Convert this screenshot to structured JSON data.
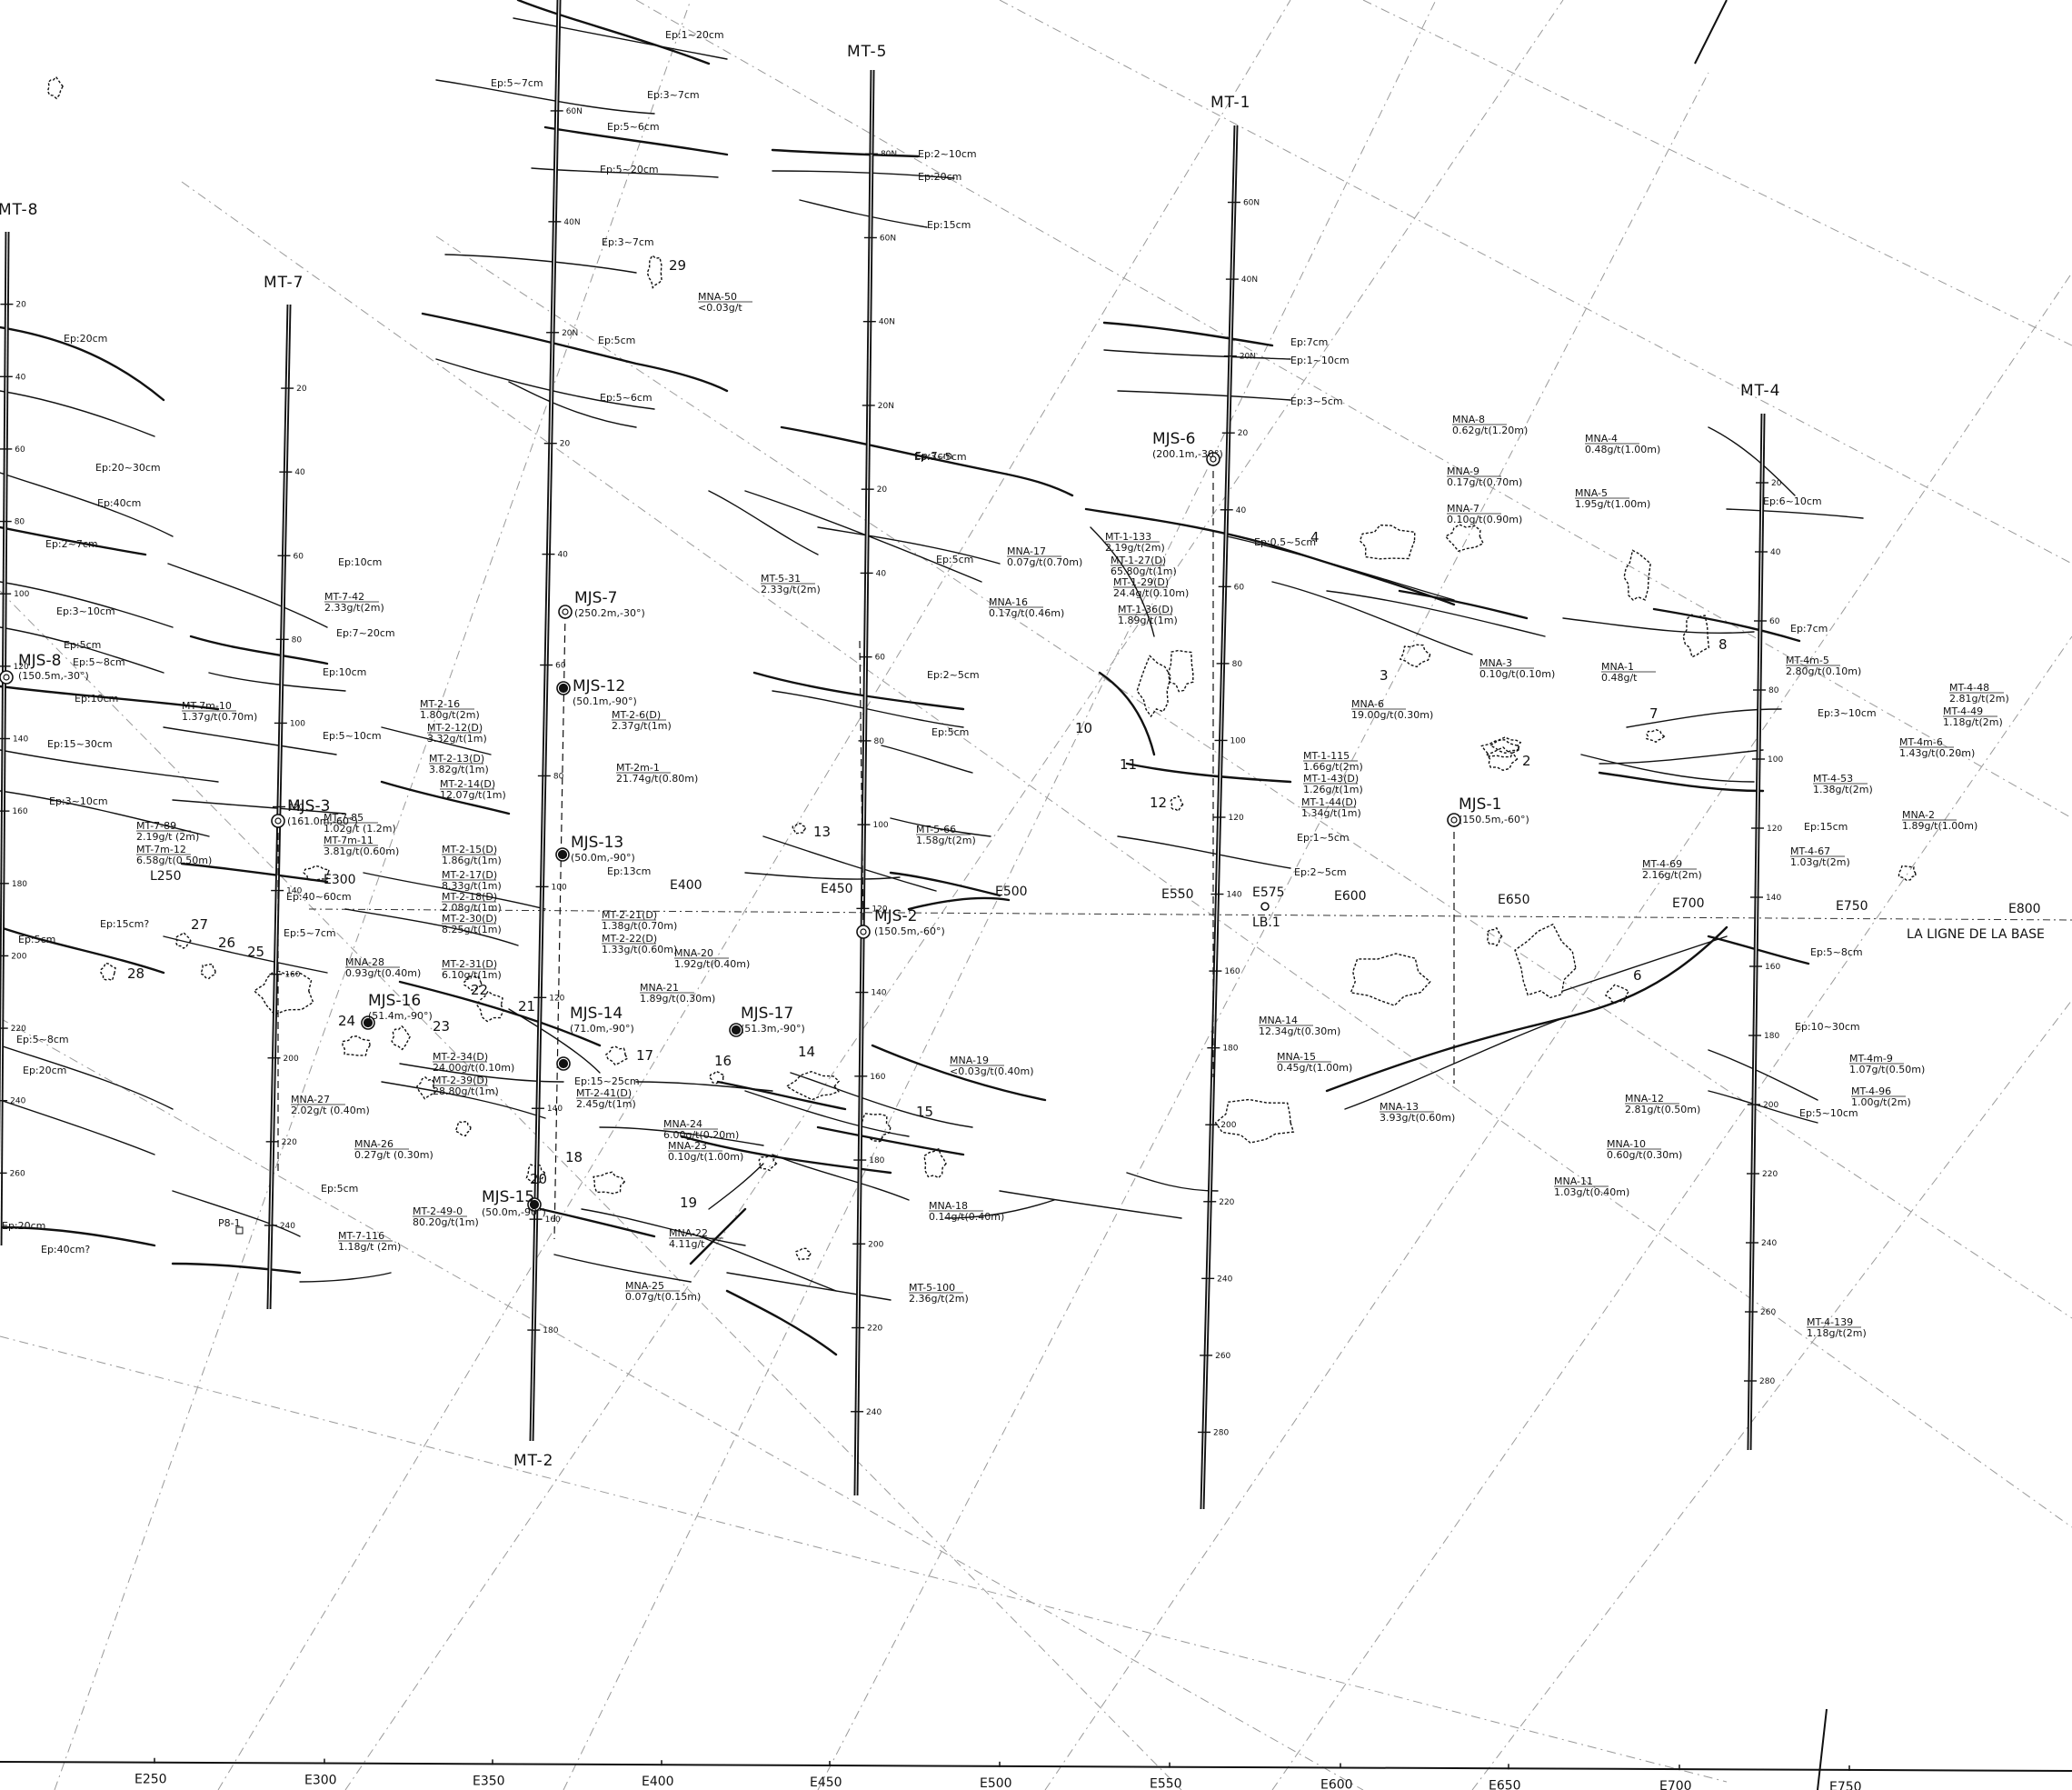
{
  "trenches": [
    {
      "id": "mt-8",
      "label": "MT-8",
      "ticks": [
        "20",
        "40",
        "60",
        "80",
        "100",
        "120",
        "140",
        "160",
        "180",
        "200",
        "220",
        "240",
        "260"
      ]
    },
    {
      "id": "mt-7",
      "label": "MT-7",
      "ticks": [
        "20",
        "40",
        "60",
        "80",
        "100",
        "120",
        "140",
        "160",
        "200",
        "220",
        "240"
      ]
    },
    {
      "id": "mt-2",
      "label": "MT-2",
      "ticks": [
        "60N",
        "40N",
        "20N",
        "20",
        "40",
        "60",
        "80",
        "100",
        "120",
        "140",
        "160",
        "180"
      ]
    },
    {
      "id": "mt-5",
      "label": "MT-5",
      "ticks": [
        "80N",
        "60N",
        "40N",
        "20N",
        "20",
        "40",
        "60",
        "80",
        "100",
        "120",
        "140",
        "160",
        "180",
        "200",
        "220",
        "240"
      ]
    },
    {
      "id": "mt-1",
      "label": "MT-1",
      "ticks": [
        "60N",
        "40N",
        "20N",
        "20",
        "40",
        "60",
        "80",
        "100",
        "120",
        "140",
        "160",
        "180",
        "200",
        "220",
        "240",
        "260",
        "280"
      ]
    },
    {
      "id": "mt-4",
      "label": "MT-4",
      "ticks": [
        "20",
        "40",
        "60",
        "80",
        "100",
        "120",
        "140",
        "160",
        "180",
        "200",
        "220",
        "240",
        "260",
        "280"
      ]
    }
  ],
  "drill_holes": [
    {
      "id": "mjs-8",
      "label": "MJS-8",
      "info": "(150.5m,-30°)"
    },
    {
      "id": "mjs-3",
      "label": "MJS-3",
      "info": "(161.0m,-60°)"
    },
    {
      "id": "mjs-16",
      "label": "MJS-16",
      "info": "(51.4m,-90°)"
    },
    {
      "id": "mjs-7",
      "label": "MJS-7",
      "info": "(250.2m,-30°)"
    },
    {
      "id": "mjs-12",
      "label": "MJS-12",
      "info": "(50.1m,-90°)"
    },
    {
      "id": "mjs-13",
      "label": "MJS-13",
      "info": "(50.0m,-90°)"
    },
    {
      "id": "mjs-14",
      "label": "MJS-14",
      "info": "(71.0m,-90°)"
    },
    {
      "id": "mjs-15",
      "label": "MJS-15",
      "info": "(50.0m,-90°)"
    },
    {
      "id": "mjs-17",
      "label": "MJS-17",
      "info": "(51.3m,-90°)"
    },
    {
      "id": "mjs-2",
      "label": "MJS-2",
      "info": "(150.5m,-60°)"
    },
    {
      "id": "mjs-6",
      "label": "MJS-6",
      "info": "(200.1m,-30°)"
    },
    {
      "id": "mjs-1",
      "label": "MJS-1",
      "info": "(150.5m,-60°)"
    }
  ],
  "bottom_axis": [
    "E250",
    "E300",
    "E350",
    "E400",
    "E450",
    "E500",
    "E550",
    "E600",
    "E650",
    "E700",
    "E750"
  ],
  "baseline": {
    "label": "LA LIGNE DE LA BASE",
    "stations": [
      "L250",
      "E300",
      "E400",
      "E450",
      "E500",
      "E550",
      "E575",
      "E600",
      "E650",
      "E700",
      "E750",
      "E800"
    ],
    "benchmark": "LB.1"
  },
  "samples": [
    {
      "id": "mt-7-42",
      "label": "MT-7-42",
      "value": "2.33g/t(2m)"
    },
    {
      "id": "mt-7m-10",
      "label": "MT-7m-10",
      "value": "1.37g/t(0.70m)"
    },
    {
      "id": "mt-7-89",
      "label": "MT-7-89",
      "value": "2.19g/t (2m)"
    },
    {
      "id": "mt-7m-12",
      "label": "MT-7m-12",
      "value": "6.58g/t(0.50m)"
    },
    {
      "id": "mt-7-85",
      "label": "MT-7-85",
      "value": "1.02g/t (1.2m)"
    },
    {
      "id": "mt-7m-11",
      "label": "MT-7m-11",
      "value": "3.81g/t(0.60m)"
    },
    {
      "id": "mt-7-116",
      "label": "MT-7-116",
      "value": "1.18g/t (2m)"
    },
    {
      "id": "mt-2-16",
      "label": "MT-2-16",
      "value": "1.80g/t(2m)"
    },
    {
      "id": "mt-2-12d",
      "label": "MT-2-12(D)",
      "value": "3.32g/t(1m)"
    },
    {
      "id": "mt-2-13d",
      "label": "MT-2-13(D)",
      "value": "3.82g/t(1m)"
    },
    {
      "id": "mt-2-14d",
      "label": "MT-2-14(D)",
      "value": "12.07g/t(1m)"
    },
    {
      "id": "mt-2-6d",
      "label": "MT-2-6(D)",
      "value": "2.37g/t(1m)"
    },
    {
      "id": "mt-2m-1",
      "label": "MT-2m-1",
      "value": "21.74g/t(0.80m)"
    },
    {
      "id": "mt-2-15d",
      "label": "MT-2-15(D)",
      "value": "1.86g/t(1m)"
    },
    {
      "id": "mt-2-17d",
      "label": "MT-2-17(D)",
      "value": "8.33g/t(1m)"
    },
    {
      "id": "mt-2-18d",
      "label": "MT-2-18(D)",
      "value": "2.08g/t(1m)"
    },
    {
      "id": "mt-2-30d",
      "label": "MT-2-30(D)",
      "value": "8.25g/t(1m)"
    },
    {
      "id": "mt-2-21d",
      "label": "MT-2-21(D)",
      "value": "1.38g/t(0.70m)"
    },
    {
      "id": "mt-2-22d",
      "label": "MT-2-22(D)",
      "value": "1.33g/t(0.60m)"
    },
    {
      "id": "mt-2-31d",
      "label": "MT-2-31(D)",
      "value": "6.10g/t(1m)"
    },
    {
      "id": "mt-2-34d",
      "label": "MT-2-34(D)",
      "value": "24.00g/t(0.10m)"
    },
    {
      "id": "mt-2-39d",
      "label": "MT-2-39(D)",
      "value": "28.80g/t(1m)"
    },
    {
      "id": "mt-2-41d",
      "label": "MT-2-41(D)",
      "value": "2.45g/t(1m)"
    },
    {
      "id": "mt-2-49-0",
      "label": "MT-2-49-0",
      "value": "80.20g/t(1m)"
    },
    {
      "id": "mt-5-31",
      "label": "MT-5-31",
      "value": "2.33g/t(2m)"
    },
    {
      "id": "mt-5-66",
      "label": "MT-5-66",
      "value": "1.58g/t(2m)"
    },
    {
      "id": "mt-5-100",
      "label": "MT-5-100",
      "value": "2.36g/t(2m)"
    },
    {
      "id": "mt-1-133",
      "label": "MT-1-133",
      "value": "2.19g/t(2m)"
    },
    {
      "id": "mt-1-27d",
      "label": "MT-1-27(D)",
      "value": "65.80g/t(1m)"
    },
    {
      "id": "mt-1-29d",
      "label": "MT-1-29(D)",
      "value": "24.4g/t(0.10m)"
    },
    {
      "id": "mt-1-36d",
      "label": "MT-1-36(D)",
      "value": "1.89g/t(1m)"
    },
    {
      "id": "mt-1-115",
      "label": "MT-1-115",
      "value": "1.66g/t(2m)"
    },
    {
      "id": "mt-1-43d",
      "label": "MT-1-43(D)",
      "value": "1.26g/t(1m)"
    },
    {
      "id": "mt-1-44d",
      "label": "MT-1-44(D)",
      "value": "1.34g/t(1m)"
    },
    {
      "id": "mt-4m-5",
      "label": "MT-4m-5",
      "value": "2.80g/t(0.10m)"
    },
    {
      "id": "mt-4-48",
      "label": "MT-4-48",
      "value": "2.81g/t(2m)"
    },
    {
      "id": "mt-4-49",
      "label": "MT-4-49",
      "value": "1.18g/t(2m)"
    },
    {
      "id": "mt-4m-6",
      "label": "MT-4m-6",
      "value": "1.43g/t(0.20m)"
    },
    {
      "id": "mt-4-53",
      "label": "MT-4-53",
      "value": "1.38g/t(2m)"
    },
    {
      "id": "mt-4-67",
      "label": "MT-4-67",
      "value": "1.03g/t(2m)"
    },
    {
      "id": "mt-4-69",
      "label": "MT-4-69",
      "value": "2.16g/t(2m)"
    },
    {
      "id": "mt-4m-9",
      "label": "MT-4m-9",
      "value": "1.07g/t(0.50m)"
    },
    {
      "id": "mt-4-96",
      "label": "MT-4-96",
      "value": "1.00g/t(2m)"
    },
    {
      "id": "mt-4-139",
      "label": "MT-4-139",
      "value": "1.18g/t(2m)"
    },
    {
      "id": "mna-50",
      "label": "MNA-50",
      "value": "<0.03g/t"
    },
    {
      "id": "mna-28",
      "label": "MNA-28",
      "value": "0.93g/t(0.40m)"
    },
    {
      "id": "mna-27",
      "label": "MNA-27",
      "value": "2.02g/t (0.40m)"
    },
    {
      "id": "mna-26",
      "label": "MNA-26",
      "value": "0.27g/t (0.30m)"
    },
    {
      "id": "mna-20",
      "label": "MNA-20",
      "value": "1.92g/t(0.40m)"
    },
    {
      "id": "mna-21",
      "label": "MNA-21",
      "value": "1.89g/t(0.30m)"
    },
    {
      "id": "mna-24",
      "label": "MNA-24",
      "value": "6.00g/t(0.20m)"
    },
    {
      "id": "mna-23",
      "label": "MNA-23",
      "value": "0.10g/t(1.00m)"
    },
    {
      "id": "mna-22",
      "label": "MNA-22",
      "value": "4.11g/t"
    },
    {
      "id": "mna-25",
      "label": "MNA-25",
      "value": "0.07g/t(0.15m)"
    },
    {
      "id": "mna-19",
      "label": "MNA-19",
      "value": "<0.03g/t(0.40m)"
    },
    {
      "id": "mna-18",
      "label": "MNA-18",
      "value": "0.14g/t(0.40m)"
    },
    {
      "id": "mna-17",
      "label": "MNA-17",
      "value": "0.07g/t(0.70m)"
    },
    {
      "id": "mna-16",
      "label": "MNA-16",
      "value": "0.17g/t(0.46m)"
    },
    {
      "id": "mna-8",
      "label": "MNA-8",
      "value": "0.62g/t(1.20m)"
    },
    {
      "id": "mna-9",
      "label": "MNA-9",
      "value": "0.17g/t(0.70m)"
    },
    {
      "id": "mna-7",
      "label": "MNA-7",
      "value": "0.10g/t(0.90m)"
    },
    {
      "id": "mna-4",
      "label": "MNA-4",
      "value": "0.48g/t(1.00m)"
    },
    {
      "id": "mna-5",
      "label": "MNA-5",
      "value": "1.95g/t(1.00m)"
    },
    {
      "id": "mna-3",
      "label": "MNA-3",
      "value": "0.10g/t(0.10m)"
    },
    {
      "id": "mna-1",
      "label": "MNA-1",
      "value": "0.48g/t"
    },
    {
      "id": "mna-6",
      "label": "MNA-6",
      "value": "19.00g/t(0.30m)"
    },
    {
      "id": "mna-2",
      "label": "MNA-2",
      "value": "1.89g/t(1.00m)"
    },
    {
      "id": "mna-14",
      "label": "MNA-14",
      "value": "12.34g/t(0.30m)"
    },
    {
      "id": "mna-15",
      "label": "MNA-15",
      "value": "0.45g/t(1.00m)"
    },
    {
      "id": "mna-13",
      "label": "MNA-13",
      "value": "3.93g/t(0.60m)"
    },
    {
      "id": "mna-12",
      "label": "MNA-12",
      "value": "2.81g/t(0.50m)"
    },
    {
      "id": "mna-10",
      "label": "MNA-10",
      "value": "0.60g/t(0.30m)"
    },
    {
      "id": "mna-11",
      "label": "MNA-11",
      "value": "1.03g/t(0.40m)"
    }
  ],
  "vein_thickness_notes": [
    "Ep:1~20cm",
    "Ep:5~7cm",
    "Ep:3~7cm",
    "Ep:5~6cm",
    "Ep:5~20cm",
    "Ep:3~7cm",
    "Ep:5cm",
    "Ep:5~6cm",
    "Ep:2~10cm",
    "Ep:20cm",
    "Ep:15cm",
    "Ep:7cm",
    "Ep:3~5cm",
    "Ep:5cm",
    "Ep:2~5cm",
    "Ep:5cm",
    "Ep:7cm",
    "Ep:1~10cm",
    "Ep:3~5cm",
    "Ep:0.5~5cm",
    "Ep:1~5cm",
    "Ep:2~5cm",
    "Ep:6~10cm",
    "Ep:7cm",
    "Ep:3~10cm",
    "Ep:15cm",
    "Ep:5~8cm",
    "Ep:10~30cm",
    "Ep:5~10cm",
    "Ep:20cm",
    "Ep:20~30cm",
    "Ep:40cm",
    "Ep:2~7cm",
    "Ep:3~10cm",
    "Ep:5cm",
    "Ep:5~8cm",
    "Ep:10cm",
    "Ep:15~30cm",
    "Ep:3~10cm",
    "Ep:5cm",
    "Ep:5~8cm",
    "Ep:20cm",
    "Ep:20cm",
    "Ep:40cm?",
    "Ep:10cm",
    "Ep:7~20cm",
    "Ep:10cm",
    "Ep:5~10cm",
    "Ep:40~60cm",
    "Ep:5~7cm",
    "Ep:5cm",
    "Ep:13cm",
    "Ep:15~25cm",
    "Ep:15cm?"
  ],
  "outcrop_numbers": [
    "2",
    "3",
    "4",
    "6",
    "7",
    "8",
    "10",
    "11",
    "12",
    "13",
    "14",
    "15",
    "16",
    "17",
    "18",
    "19",
    "20",
    "21",
    "22",
    "23",
    "24",
    "25",
    "26",
    "27",
    "28",
    "29"
  ],
  "pit_label": "P8-1",
  "colors": {
    "ink": "#111111",
    "paper": "#ffffff",
    "grid": "#9a9a9a"
  }
}
